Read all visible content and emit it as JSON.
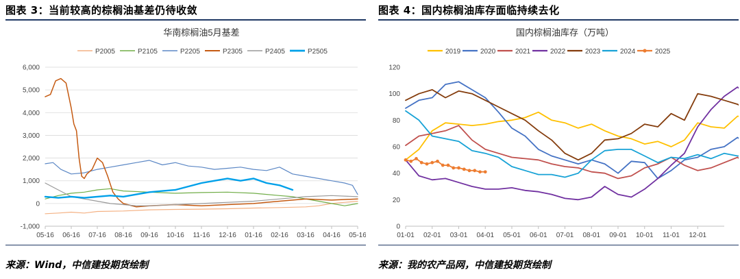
{
  "figures": [
    {
      "title": "图表 3：当前较高的棕榈油基差仍待收敛",
      "source": "来源：Wind，中信建投期货绘制"
    },
    {
      "title": "图表 4：国内棕榈油库存面临持续去化",
      "source": "来源：我的农产品网，中信建投期货绘制"
    }
  ],
  "chart_data": [
    {
      "type": "line",
      "title": "华南棕榈油5月基差",
      "xlabel": "",
      "ylabel": "",
      "ylim": [
        -1000,
        6000
      ],
      "yticks": [
        "6,000",
        "5,000",
        "4,000",
        "3,000",
        "2,000",
        "1,000",
        "0",
        "-1,000"
      ],
      "xticks": [
        "05-16",
        "06-16",
        "07-16",
        "08-16",
        "09-16",
        "10-16",
        "11-16",
        "12-16",
        "01-16",
        "02-16",
        "03-16",
        "04-16",
        "05-16"
      ],
      "grid": true,
      "legend": "top",
      "series": [
        {
          "name": "P2005",
          "color": "#f4b183",
          "width": 1.2,
          "x": [
            0,
            0.5,
            1,
            1.5,
            2,
            3,
            4,
            5,
            6,
            7,
            8,
            9,
            10,
            10.5,
            11,
            11.5,
            12
          ],
          "values": [
            -450,
            -420,
            -380,
            -420,
            -350,
            -330,
            -280,
            -260,
            -250,
            -230,
            -200,
            -180,
            -150,
            -100,
            0,
            50,
            100
          ]
        },
        {
          "name": "P2105",
          "color": "#70ad47",
          "width": 1.2,
          "x": [
            0,
            0.5,
            1,
            1.5,
            2,
            2.5,
            3,
            4,
            5,
            6,
            7,
            8,
            9,
            9.5,
            10,
            10.5,
            11,
            11.5,
            12
          ],
          "values": [
            200,
            350,
            450,
            500,
            600,
            650,
            550,
            500,
            450,
            480,
            500,
            450,
            350,
            300,
            200,
            100,
            0,
            -100,
            0
          ]
        },
        {
          "name": "P2205",
          "color": "#5b87c5",
          "width": 1.2,
          "x": [
            0,
            0.3,
            0.6,
            1,
            1.5,
            2,
            2.5,
            3,
            3.5,
            4,
            4.5,
            5,
            5.5,
            6,
            6.5,
            7,
            7.5,
            8,
            8.5,
            9,
            9.5,
            10,
            10.5,
            11,
            11.5,
            11.8,
            12
          ],
          "values": [
            1750,
            1800,
            1500,
            1300,
            1350,
            1500,
            1600,
            1700,
            1800,
            1900,
            1700,
            1800,
            1650,
            1600,
            1500,
            1550,
            1600,
            1500,
            1450,
            1600,
            1300,
            1200,
            1100,
            1000,
            900,
            800,
            400
          ]
        },
        {
          "name": "P2305",
          "color": "#c55a11",
          "width": 1.5,
          "x": [
            0,
            0.2,
            0.4,
            0.6,
            0.8,
            1.0,
            1.1,
            1.2,
            1.3,
            1.4,
            1.5,
            1.6,
            1.8,
            2.0,
            2.2,
            2.4,
            2.6,
            2.8,
            3.0,
            3.5,
            4,
            5,
            6,
            7,
            8,
            9,
            10,
            11,
            12
          ],
          "values": [
            4700,
            4800,
            5400,
            5500,
            5300,
            4200,
            3500,
            3200,
            2000,
            1200,
            1100,
            1300,
            1500,
            2000,
            1800,
            1200,
            500,
            200,
            0,
            -150,
            -100,
            -50,
            -100,
            -50,
            0,
            100,
            200,
            150,
            200
          ]
        },
        {
          "name": "P2405",
          "color": "#999999",
          "width": 1.2,
          "x": [
            0,
            0.5,
            1,
            1.5,
            2,
            2.5,
            3,
            3.5,
            4,
            5,
            6,
            7,
            8,
            9,
            10,
            11,
            12
          ],
          "values": [
            900,
            600,
            300,
            200,
            100,
            0,
            -50,
            -100,
            -100,
            -50,
            0,
            50,
            100,
            200,
            300,
            350,
            300
          ]
        },
        {
          "name": "P2505",
          "color": "#00a0e9",
          "width": 2.4,
          "x": [
            0,
            0.5,
            1,
            1.5,
            2,
            2.5,
            3,
            3.5,
            4,
            4.5,
            5,
            5.5,
            6,
            6.5,
            7,
            7.5,
            8,
            8.5,
            9,
            9.5
          ],
          "values": [
            300,
            250,
            300,
            250,
            300,
            350,
            300,
            400,
            500,
            550,
            600,
            750,
            900,
            1000,
            1100,
            1000,
            1100,
            900,
            800,
            600
          ]
        }
      ]
    },
    {
      "type": "line",
      "title": "国内棕榈油库存（万吨）",
      "xlabel": "",
      "ylabel": "",
      "ylim": [
        0,
        120
      ],
      "yticks": [
        "120",
        "100",
        "80",
        "60",
        "40",
        "20",
        "0"
      ],
      "xticks": [
        "01-01",
        "02-01",
        "03-01",
        "04-01",
        "05-01",
        "06-01",
        "07-01",
        "08-01",
        "09-01",
        "10-01",
        "11-01",
        "12-01"
      ],
      "grid": false,
      "legend": "top",
      "series": [
        {
          "name": "2019",
          "color": "#ffc000",
          "width": 1.8,
          "x": [
            0,
            0.5,
            1,
            1.5,
            2,
            2.5,
            3,
            3.5,
            4,
            4.5,
            5,
            5.5,
            6,
            6.5,
            7,
            7.5,
            8,
            8.5,
            9,
            9.5,
            10,
            10.5,
            11,
            11.5,
            12,
            12.5,
            12.9
          ],
          "values": [
            50,
            58,
            72,
            78,
            77,
            76,
            77,
            79,
            80,
            82,
            86,
            80,
            78,
            74,
            77,
            72,
            68,
            66,
            62,
            64,
            60,
            65,
            78,
            75,
            74,
            83,
            82
          ]
        },
        {
          "name": "2020",
          "color": "#4472c4",
          "width": 1.8,
          "x": [
            0,
            0.5,
            1,
            1.5,
            2,
            2.5,
            3,
            3.5,
            4,
            4.5,
            5,
            5.5,
            6,
            6.5,
            7,
            7.5,
            8,
            8.5,
            9,
            9.5,
            10,
            10.5,
            11,
            11.5,
            12,
            12.5,
            12.9
          ],
          "values": [
            89,
            95,
            97,
            107,
            109,
            103,
            97,
            86,
            74,
            68,
            58,
            53,
            50,
            47,
            50,
            47,
            40,
            49,
            48,
            36,
            42,
            50,
            52,
            58,
            60,
            67,
            61
          ]
        },
        {
          "name": "2021",
          "color": "#c0504d",
          "width": 1.8,
          "x": [
            0,
            0.5,
            1,
            1.5,
            2,
            2.5,
            3,
            3.5,
            4,
            4.5,
            5,
            5.5,
            6,
            6.5,
            7,
            7.5,
            8,
            8.5,
            9,
            9.5,
            10,
            10.5,
            11,
            11.5,
            12,
            12.5,
            12.9
          ],
          "values": [
            61,
            68,
            70,
            72,
            76,
            65,
            58,
            55,
            52,
            51,
            50,
            47,
            45,
            44,
            41,
            40,
            36,
            38,
            44,
            47,
            52,
            46,
            42,
            44,
            48,
            52,
            46
          ]
        },
        {
          "name": "2022",
          "color": "#7030a0",
          "width": 1.8,
          "x": [
            0,
            0.5,
            1,
            1.5,
            2,
            2.5,
            3,
            3.5,
            4,
            4.5,
            5,
            5.5,
            6,
            6.5,
            7,
            7.5,
            8,
            8.5,
            9,
            9.5,
            10,
            10.5,
            11,
            11.5,
            12,
            12.5,
            12.9
          ],
          "values": [
            50,
            38,
            35,
            36,
            33,
            30,
            28,
            28,
            29,
            27,
            26,
            24,
            21,
            20,
            22,
            30,
            24,
            22,
            28,
            36,
            46,
            55,
            75,
            88,
            98,
            105,
            98
          ]
        },
        {
          "name": "2023",
          "color": "#843c0c",
          "width": 1.8,
          "x": [
            0,
            0.5,
            1,
            1.5,
            2,
            2.5,
            3,
            3.5,
            4,
            4.5,
            5,
            5.5,
            6,
            6.5,
            7,
            7.5,
            8,
            8.5,
            9,
            9.5,
            10,
            10.5,
            11,
            11.5,
            12,
            12.5,
            12.9
          ],
          "values": [
            95,
            100,
            103,
            97,
            102,
            100,
            95,
            90,
            85,
            80,
            72,
            65,
            55,
            50,
            55,
            65,
            66,
            70,
            77,
            75,
            85,
            80,
            100,
            98,
            95,
            92,
            87
          ]
        },
        {
          "name": "2024",
          "color": "#17a2d6",
          "width": 1.8,
          "x": [
            0,
            0.5,
            1,
            1.5,
            2,
            2.5,
            3,
            3.5,
            4,
            4.5,
            5,
            5.5,
            6,
            6.5,
            7,
            7.5,
            8,
            8.5,
            9,
            9.5,
            10,
            10.5,
            11,
            11.5,
            12,
            12.5,
            12.9
          ],
          "values": [
            87,
            80,
            68,
            66,
            64,
            57,
            55,
            52,
            45,
            42,
            39,
            39,
            37,
            40,
            50,
            57,
            58,
            58,
            53,
            48,
            52,
            51,
            54,
            51,
            55,
            53,
            53
          ]
        },
        {
          "name": "2025",
          "color": "#ed7d31",
          "width": 1.8,
          "marker": true,
          "x": [
            0,
            0.2,
            0.4,
            0.6,
            0.8,
            1.0,
            1.2,
            1.4,
            1.6,
            1.8,
            2.0,
            2.2,
            2.4,
            2.6,
            2.8,
            3.0
          ],
          "values": [
            50,
            49,
            51,
            48,
            47,
            48,
            49,
            46,
            46,
            44,
            44,
            43,
            42,
            42,
            41,
            41
          ]
        }
      ]
    }
  ]
}
